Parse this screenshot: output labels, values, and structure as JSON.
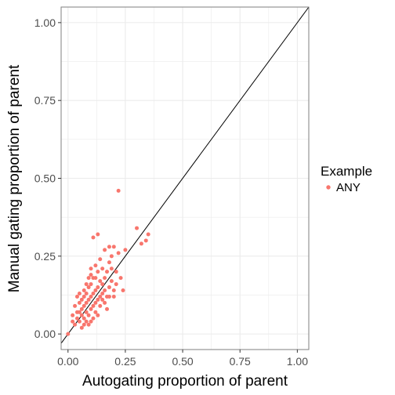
{
  "chart_data": {
    "type": "scatter",
    "xlabel": "Autogating proportion of parent",
    "ylabel": "Manual gating proportion of parent",
    "xlim": [
      -0.03,
      1.05
    ],
    "ylim": [
      -0.05,
      1.05
    ],
    "x_ticks": [
      "0.00",
      "0.25",
      "0.50",
      "0.75",
      "1.00"
    ],
    "y_ticks": [
      "0.00",
      "0.25",
      "0.50",
      "0.75",
      "1.00"
    ],
    "grid": true,
    "reference_line": "y = x",
    "legend": {
      "title": "Example",
      "placement": "right",
      "entries": [
        "ANY"
      ]
    },
    "colors": {
      "ANY": "#F8766D",
      "line": "#000000",
      "grid": "#ebebeb",
      "panel_border": "#7f7f7f"
    },
    "series": [
      {
        "name": "ANY",
        "points": [
          [
            0.0,
            0.0
          ],
          [
            0.02,
            0.04
          ],
          [
            0.03,
            0.03
          ],
          [
            0.04,
            0.05
          ],
          [
            0.04,
            0.07
          ],
          [
            0.05,
            0.04
          ],
          [
            0.05,
            0.1
          ],
          [
            0.06,
            0.06
          ],
          [
            0.06,
            0.08
          ],
          [
            0.07,
            0.05
          ],
          [
            0.07,
            0.09
          ],
          [
            0.07,
            0.12
          ],
          [
            0.08,
            0.07
          ],
          [
            0.08,
            0.1
          ],
          [
            0.08,
            0.13
          ],
          [
            0.09,
            0.06
          ],
          [
            0.09,
            0.11
          ],
          [
            0.09,
            0.15
          ],
          [
            0.1,
            0.08
          ],
          [
            0.1,
            0.12
          ],
          [
            0.1,
            0.16
          ],
          [
            0.1,
            0.19
          ],
          [
            0.11,
            0.09
          ],
          [
            0.11,
            0.13
          ],
          [
            0.11,
            0.18
          ],
          [
            0.12,
            0.1
          ],
          [
            0.12,
            0.14
          ],
          [
            0.12,
            0.22
          ],
          [
            0.13,
            0.11
          ],
          [
            0.13,
            0.15
          ],
          [
            0.13,
            0.2
          ],
          [
            0.14,
            0.12
          ],
          [
            0.14,
            0.17
          ],
          [
            0.14,
            0.24
          ],
          [
            0.15,
            0.13
          ],
          [
            0.15,
            0.16
          ],
          [
            0.15,
            0.21
          ],
          [
            0.16,
            0.14
          ],
          [
            0.16,
            0.18
          ],
          [
            0.16,
            0.27
          ],
          [
            0.17,
            0.12
          ],
          [
            0.17,
            0.2
          ],
          [
            0.18,
            0.15
          ],
          [
            0.18,
            0.23
          ],
          [
            0.19,
            0.17
          ],
          [
            0.19,
            0.25
          ],
          [
            0.2,
            0.14
          ],
          [
            0.2,
            0.28
          ],
          [
            0.21,
            0.2
          ],
          [
            0.22,
            0.26
          ],
          [
            0.22,
            0.46
          ],
          [
            0.23,
            0.18
          ],
          [
            0.25,
            0.27
          ],
          [
            0.3,
            0.34
          ],
          [
            0.32,
            0.29
          ],
          [
            0.34,
            0.3
          ],
          [
            0.35,
            0.32
          ],
          [
            0.13,
            0.32
          ],
          [
            0.11,
            0.31
          ],
          [
            0.05,
            0.13
          ],
          [
            0.03,
            0.09
          ],
          [
            0.08,
            0.04
          ],
          [
            0.06,
            0.02
          ],
          [
            0.09,
            0.03
          ],
          [
            0.12,
            0.07
          ],
          [
            0.14,
            0.09
          ],
          [
            0.16,
            0.1
          ],
          [
            0.18,
            0.12
          ],
          [
            0.2,
            0.12
          ],
          [
            0.24,
            0.14
          ],
          [
            0.21,
            0.16
          ],
          [
            0.17,
            0.08
          ],
          [
            0.15,
            0.11
          ],
          [
            0.13,
            0.06
          ],
          [
            0.11,
            0.05
          ],
          [
            0.1,
            0.04
          ],
          [
            0.07,
            0.03
          ],
          [
            0.05,
            0.07
          ],
          [
            0.08,
            0.16
          ],
          [
            0.12,
            0.18
          ],
          [
            0.19,
            0.21
          ],
          [
            0.18,
            0.28
          ],
          [
            0.1,
            0.21
          ],
          [
            0.09,
            0.18
          ],
          [
            0.07,
            0.14
          ],
          [
            0.06,
            0.11
          ],
          [
            0.04,
            0.12
          ],
          [
            0.02,
            0.06
          ]
        ]
      }
    ]
  }
}
